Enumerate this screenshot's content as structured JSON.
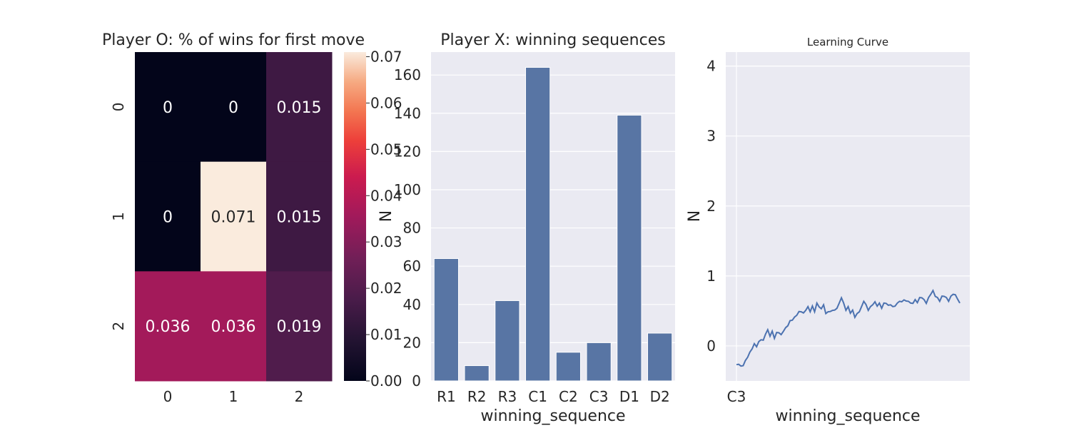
{
  "chart_data": [
    {
      "type": "heatmap",
      "title": "Player O: % of wins for first move",
      "rows": [
        "0",
        "1",
        "2"
      ],
      "columns": [
        "0",
        "1",
        "2"
      ],
      "values": [
        [
          0.0,
          0.0,
          0.015
        ],
        [
          0.0,
          0.071,
          0.015
        ],
        [
          0.036,
          0.036,
          0.019
        ]
      ],
      "cell_labels": [
        [
          "0",
          "0",
          "0.015"
        ],
        [
          "0",
          "0.071",
          "0.015"
        ],
        [
          "0.036",
          "0.036",
          "0.019"
        ]
      ],
      "colorbar": {
        "ticks": [
          "0.00",
          "0.01",
          "0.02",
          "0.03",
          "0.04",
          "0.05",
          "0.06",
          "0.07"
        ],
        "range": [
          0,
          0.071
        ],
        "colormap": "rocket"
      }
    },
    {
      "type": "bar",
      "title": "Player X: winning sequences",
      "categories": [
        "R1",
        "R2",
        "R3",
        "C1",
        "C2",
        "C3",
        "D1",
        "D2"
      ],
      "values": [
        64,
        8,
        42,
        164,
        15,
        20,
        139,
        25
      ],
      "xlabel": "winning_sequence",
      "ylabel": "N",
      "ylim": [
        0,
        172
      ],
      "yticks": [
        "0",
        "20",
        "40",
        "60",
        "80",
        "100",
        "120",
        "140",
        "160"
      ],
      "bar_color": "#5875a4",
      "grid": true
    },
    {
      "type": "line",
      "title": "Learning Curve",
      "xlabel": "winning_sequence",
      "ylabel": "N",
      "ylim": [
        -0.5,
        4.2
      ],
      "yticks": [
        "0",
        "1",
        "2",
        "3",
        "4"
      ],
      "xtick_text": "C3",
      "series_color": "#4c72b0",
      "grid": true,
      "y_values": [
        -0.28,
        -0.25,
        -0.3,
        -0.27,
        -0.22,
        -0.15,
        -0.1,
        -0.03,
        0.02,
        0.0,
        0.05,
        0.1,
        0.07,
        0.18,
        0.22,
        0.15,
        0.2,
        0.12,
        0.18,
        0.2,
        0.15,
        0.22,
        0.25,
        0.3,
        0.35,
        0.38,
        0.4,
        0.45,
        0.48,
        0.5,
        0.46,
        0.52,
        0.55,
        0.5,
        0.56,
        0.5,
        0.6,
        0.57,
        0.52,
        0.6,
        0.45,
        0.5,
        0.48,
        0.52,
        0.5,
        0.55,
        0.6,
        0.7,
        0.6,
        0.52,
        0.55,
        0.48,
        0.5,
        0.42,
        0.45,
        0.5,
        0.55,
        0.65,
        0.58,
        0.52,
        0.55,
        0.6,
        0.62,
        0.58,
        0.6,
        0.55,
        0.6,
        0.62,
        0.57,
        0.6,
        0.55,
        0.58,
        0.6,
        0.65,
        0.62,
        0.67,
        0.63,
        0.65,
        0.6,
        0.62,
        0.65,
        0.63,
        0.68,
        0.7,
        0.65,
        0.62,
        0.68,
        0.75,
        0.78,
        0.72,
        0.68,
        0.65,
        0.7,
        0.72,
        0.68,
        0.65,
        0.7,
        0.75,
        0.72,
        0.68,
        0.6
      ]
    }
  ]
}
